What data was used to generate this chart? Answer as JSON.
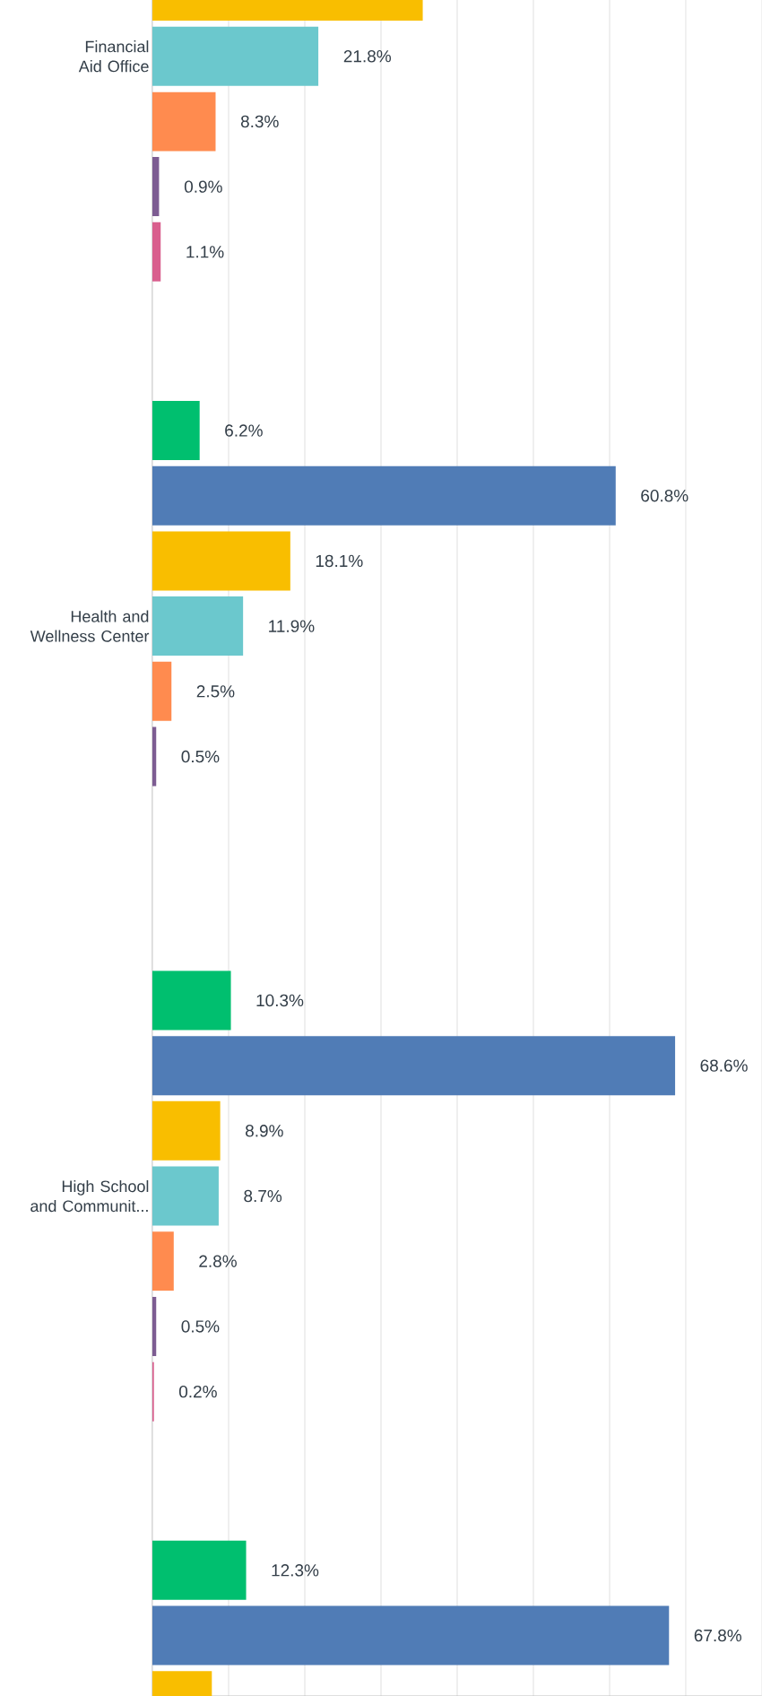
{
  "chart_data": {
    "type": "bar",
    "orientation": "horizontal",
    "categories": [
      "Financial Aid Office",
      "Health and Wellness Center",
      "High School and Communit...",
      null
    ],
    "series": [
      {
        "color": "#00bf6f",
        "values": [
          null,
          6.2,
          10.3,
          12.3
        ],
        "value_labels": [
          null,
          "6.2%",
          "10.3%",
          "12.3%"
        ]
      },
      {
        "color": "#507cb6",
        "values": [
          null,
          60.8,
          68.6,
          67.8
        ],
        "value_labels": [
          null,
          "60.8%",
          "68.6%",
          "67.8%"
        ]
      },
      {
        "color": "#f9be00",
        "values": [
          35.5,
          18.1,
          8.9,
          7.8
        ],
        "value_labels": [
          null,
          "18.1%",
          "8.9%",
          null
        ]
      },
      {
        "color": "#6bc8cd",
        "values": [
          21.8,
          11.9,
          8.7,
          null
        ],
        "value_labels": [
          "21.8%",
          "11.9%",
          "8.7%",
          null
        ]
      },
      {
        "color": "#ff8b4f",
        "values": [
          8.3,
          2.5,
          2.8,
          null
        ],
        "value_labels": [
          "8.3%",
          "2.5%",
          "2.8%",
          null
        ]
      },
      {
        "color": "#7d5c92",
        "values": [
          0.9,
          0.5,
          0.5,
          null
        ],
        "value_labels": [
          "0.9%",
          "0.5%",
          "0.5%",
          null
        ]
      },
      {
        "color": "#d95f8e",
        "values": [
          1.1,
          null,
          0.2,
          null
        ],
        "value_labels": [
          "1.1%",
          null,
          "0.2%",
          null
        ]
      }
    ],
    "xlim": [
      0,
      80
    ],
    "xticks": [
      {
        "value": 10,
        "label": null
      },
      {
        "value": 20,
        "label": null
      },
      {
        "value": 30,
        "label": null
      },
      {
        "value": 40,
        "label": null
      },
      {
        "value": 50,
        "label": null
      },
      {
        "value": 60,
        "label": null
      },
      {
        "value": 70,
        "label": null
      }
    ],
    "grid": "x",
    "tick_labels": "y"
  }
}
